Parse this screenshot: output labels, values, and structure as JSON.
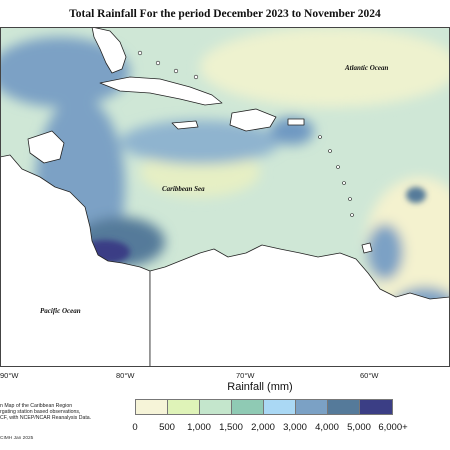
{
  "title": "Total Rainfall For the period December 2023 to November 2024",
  "map_labels": {
    "atlantic": "Atlantic Ocean",
    "caribbean": "Caribbean Sea",
    "pacific": "Pacific Ocean"
  },
  "longitude_ticks": [
    "90°W",
    "80°W",
    "70°W",
    "60°W"
  ],
  "legend": {
    "title": "Rainfall (mm)",
    "labels": [
      "0",
      "500",
      "1,000",
      "1,500",
      "2,000",
      "3,000",
      "4,000",
      "5,000",
      "6,000+"
    ],
    "colors": [
      "#f6f4d8",
      "#dff3b8",
      "#c4e6cc",
      "#8fcab4",
      "#aad8f4",
      "#7ba1c5",
      "#557a9a",
      "#3b3e85"
    ]
  },
  "footnote_lines": [
    "n Map of the Caribbean Region",
    "rgating station based observations,",
    "CF, with NCEP/NCAR Reanalysis Data."
  ],
  "copyright": "CIMH Jan 2025",
  "colors": {
    "land": "#ffffff",
    "coastline": "#222222",
    "ocean_base": "#cfe7d6"
  }
}
